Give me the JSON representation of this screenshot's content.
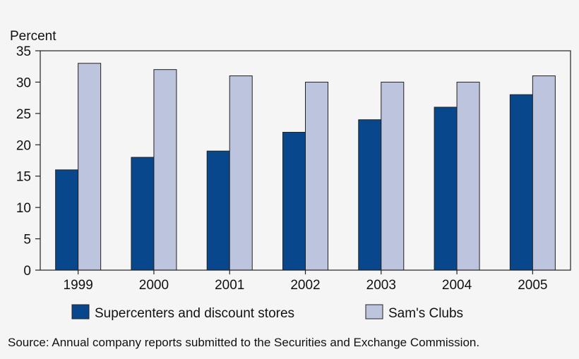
{
  "chart_data": {
    "type": "bar",
    "title": "",
    "xlabel": "",
    "ylabel": "Percent",
    "ylim": [
      0,
      35
    ],
    "yticks": [
      0,
      5,
      10,
      15,
      20,
      25,
      30,
      35
    ],
    "grid": false,
    "legend_position": "bottom",
    "categories": [
      "1999",
      "2000",
      "2001",
      "2002",
      "2003",
      "2004",
      "2005"
    ],
    "series": [
      {
        "name": "Supercenters and discount stores",
        "color": "#08478c",
        "values": [
          16,
          18,
          19,
          22,
          24,
          26,
          28
        ]
      },
      {
        "name": "Sam's Clubs",
        "color": "#bcc4de",
        "values": [
          33,
          32,
          31,
          30,
          30,
          30,
          31
        ]
      }
    ]
  },
  "source_note": "Source:  Annual company reports submitted to the Securities and Exchange Commission."
}
